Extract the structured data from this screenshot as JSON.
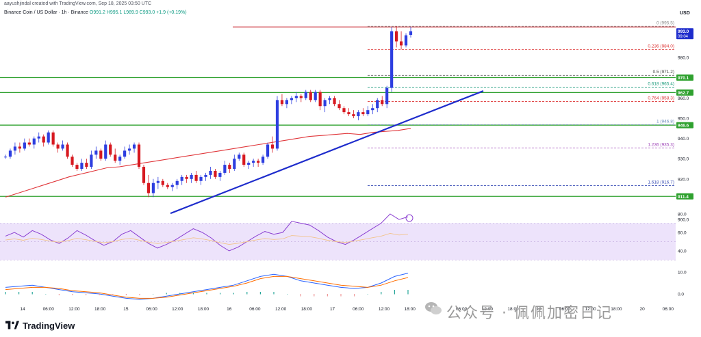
{
  "header": {
    "caption": "aayushjindal created with TradingView.com, Sep 18, 2025 03:50 UTC",
    "symbol": "Binance Coin / US Dollar · 1h · Binance",
    "ohlc": "O991.2 H995.1 L989.9 C993.0 +1.9 (+0.19%)",
    "currency": "USD"
  },
  "brand": {
    "name": "TradingView"
  },
  "watermark": {
    "text": "公众号 · 佩佩加密日记"
  },
  "colors": {
    "up": "#2d3ee0",
    "down": "#d71920",
    "support": "#2fa12f",
    "ema": "#e0363a",
    "trend": "#1e2ccc",
    "rsi": "#8b3fd1",
    "fib": "#d33",
    "accent": "#1e2ccc"
  },
  "chart_data": {
    "type": "candlestick",
    "ylim": [
      900,
      1000
    ],
    "y_ticks": [
      {
        "label": "990.0",
        "value": 990
      },
      {
        "label": "980.0",
        "value": 980
      },
      {
        "label": "960.0",
        "value": 960
      },
      {
        "label": "950.0",
        "value": 950
      },
      {
        "label": "940.0",
        "value": 940
      },
      {
        "label": "930.0",
        "value": 930
      },
      {
        "label": "920.0",
        "value": 920
      },
      {
        "label": "900.0",
        "value": 900
      }
    ],
    "price_badges": [
      {
        "label": "993.0",
        "value": 993.0,
        "sub": "09:04",
        "color": "#1e2ccc"
      },
      {
        "label": "970.1",
        "value": 970.1,
        "color": "#2fa12f"
      },
      {
        "label": "962.7",
        "value": 962.7,
        "color": "#2fa12f"
      },
      {
        "label": "946.6",
        "value": 946.6,
        "color": "#2fa12f"
      },
      {
        "label": "911.4",
        "value": 911.4,
        "color": "#2fa12f"
      }
    ],
    "x_ticks": [
      "14",
      "06:00",
      "12:00",
      "18:00",
      "15",
      "06:00",
      "12:00",
      "18:00",
      "16",
      "06:00",
      "12:00",
      "18:00",
      "17",
      "06:00",
      "12:00",
      "18:00",
      "18",
      "06:00",
      "12:00",
      "18:00",
      "19",
      "06:00",
      "12:00",
      "18:00",
      "20",
      "06:00"
    ],
    "horizontal_levels": [
      {
        "name": "resistance",
        "value": 995.1,
        "color": "#c51e24"
      },
      {
        "name": "support-970",
        "value": 970.1,
        "color": "#2fa12f"
      },
      {
        "name": "support-962",
        "value": 962.7,
        "color": "#2fa12f"
      },
      {
        "name": "support-946",
        "value": 946.6,
        "color": "#2fa12f"
      },
      {
        "name": "support-911",
        "value": 911.4,
        "color": "#2fa12f"
      }
    ],
    "fibonacci": [
      {
        "ratio": "0",
        "value": 995.5,
        "label": "0 (995.5)",
        "color": "#888888"
      },
      {
        "ratio": "0.236",
        "value": 984.0,
        "label": "0.236 (984.0)",
        "color": "#d33"
      },
      {
        "ratio": "0.5",
        "value": 971.2,
        "label": "0.5 (971.2)",
        "color": "#444"
      },
      {
        "ratio": "0.618",
        "value": 965.4,
        "label": "0.618 (965.4)",
        "color": "#189a7a"
      },
      {
        "ratio": "0.764",
        "value": 958.3,
        "label": "0.764 (958.3)",
        "color": "#d33"
      },
      {
        "ratio": "1",
        "value": 946.8,
        "label": "1 (946.8)",
        "color": "#6b8bbb"
      },
      {
        "ratio": "1.236",
        "value": 935.3,
        "label": "1.236 (935.3)",
        "color": "#9b3fb5"
      },
      {
        "ratio": "1.618",
        "value": 916.7,
        "label": "1.618 (916.7)",
        "color": "#3a4fb5"
      }
    ],
    "candles": [
      [
        931,
        932,
        930,
        931
      ],
      [
        931,
        935,
        930,
        934
      ],
      [
        934,
        938,
        932,
        936
      ],
      [
        936,
        938,
        933,
        935
      ],
      [
        935,
        940,
        934,
        938
      ],
      [
        938,
        940,
        936,
        937
      ],
      [
        937,
        941,
        935,
        940
      ],
      [
        940,
        943,
        938,
        941
      ],
      [
        941,
        942,
        936,
        938
      ],
      [
        938,
        944,
        937,
        943
      ],
      [
        943,
        944,
        936,
        937
      ],
      [
        937,
        938,
        933,
        935
      ],
      [
        935,
        939,
        934,
        937
      ],
      [
        937,
        938,
        930,
        931
      ],
      [
        931,
        932,
        926,
        927
      ],
      [
        927,
        928,
        924,
        925
      ],
      [
        925,
        930,
        924,
        928
      ],
      [
        928,
        930,
        925,
        926
      ],
      [
        926,
        934,
        925,
        932
      ],
      [
        932,
        936,
        930,
        934
      ],
      [
        934,
        935,
        929,
        930
      ],
      [
        930,
        939,
        929,
        937
      ],
      [
        937,
        938,
        931,
        932
      ],
      [
        932,
        935,
        928,
        929
      ],
      [
        929,
        932,
        927,
        931
      ],
      [
        931,
        936,
        930,
        934
      ],
      [
        934,
        937,
        932,
        935
      ],
      [
        935,
        938,
        933,
        937
      ],
      [
        937,
        938,
        925,
        926
      ],
      [
        926,
        927,
        917,
        918
      ],
      [
        918,
        922,
        911,
        913
      ],
      [
        913,
        920,
        911,
        918
      ],
      [
        918,
        921,
        915,
        919
      ],
      [
        919,
        920,
        916,
        917
      ],
      [
        917,
        918,
        915,
        916
      ],
      [
        916,
        918,
        914,
        917
      ],
      [
        917,
        920,
        915,
        919
      ],
      [
        919,
        922,
        917,
        921
      ],
      [
        921,
        922,
        918,
        920
      ],
      [
        920,
        923,
        918,
        922
      ],
      [
        922,
        924,
        918,
        919
      ],
      [
        919,
        922,
        917,
        921
      ],
      [
        921,
        923,
        919,
        922
      ],
      [
        922,
        926,
        920,
        924
      ],
      [
        924,
        925,
        920,
        921
      ],
      [
        921,
        924,
        919,
        923
      ],
      [
        923,
        929,
        922,
        927
      ],
      [
        927,
        928,
        923,
        925
      ],
      [
        925,
        932,
        924,
        930
      ],
      [
        930,
        933,
        929,
        932
      ],
      [
        932,
        933,
        926,
        927
      ],
      [
        927,
        929,
        925,
        928
      ],
      [
        928,
        930,
        926,
        929
      ],
      [
        929,
        930,
        926,
        928
      ],
      [
        928,
        932,
        927,
        931
      ],
      [
        931,
        938,
        930,
        937
      ],
      [
        937,
        941,
        933,
        935
      ],
      [
        935,
        961,
        934,
        959
      ],
      [
        959,
        962,
        956,
        957
      ],
      [
        957,
        960,
        955,
        959
      ],
      [
        959,
        961,
        957,
        960
      ],
      [
        960,
        963,
        958,
        961
      ],
      [
        961,
        962,
        958,
        960
      ],
      [
        960,
        964,
        959,
        963
      ],
      [
        963,
        964,
        958,
        959
      ],
      [
        959,
        964,
        958,
        963
      ],
      [
        963,
        964,
        954,
        956
      ],
      [
        956,
        960,
        953,
        959
      ],
      [
        959,
        961,
        957,
        960
      ],
      [
        960,
        961,
        956,
        957
      ],
      [
        957,
        959,
        954,
        955
      ],
      [
        955,
        956,
        952,
        953
      ],
      [
        953,
        955,
        951,
        952
      ],
      [
        952,
        954,
        950,
        951
      ],
      [
        951,
        954,
        949,
        953
      ],
      [
        953,
        955,
        951,
        952
      ],
      [
        952,
        956,
        951,
        954
      ],
      [
        954,
        957,
        952,
        955
      ],
      [
        955,
        960,
        953,
        959
      ],
      [
        959,
        961,
        956,
        957
      ],
      [
        957,
        966,
        955,
        965
      ],
      [
        965,
        995,
        963,
        993
      ],
      [
        993,
        995.5,
        985,
        988
      ],
      [
        988,
        993,
        984,
        986
      ],
      [
        986,
        992,
        985,
        991
      ],
      [
        991.2,
        995.1,
        989.9,
        993.0
      ]
    ],
    "series": [
      {
        "name": "EMA 100",
        "values": [
          911,
          913,
          915,
          917,
          919,
          921,
          922.5,
          924,
          925.5,
          926,
          927,
          928,
          929,
          930,
          931,
          932,
          933,
          934,
          935,
          936,
          937,
          938,
          939,
          940,
          941,
          941.5,
          942,
          942.5,
          942,
          943,
          943.5,
          944,
          945
        ]
      },
      {
        "name": "RSI",
        "values": [
          56,
          60,
          55,
          62,
          58,
          52,
          48,
          54,
          62,
          57,
          51,
          46,
          50,
          58,
          62,
          55,
          48,
          43,
          47,
          52,
          58,
          64,
          60,
          54,
          46,
          40,
          44,
          50,
          56,
          61,
          58,
          60,
          72,
          70,
          68,
          62,
          55,
          50,
          47,
          52,
          58,
          64,
          70,
          80,
          74,
          77
        ]
      }
    ],
    "rsi_levels": [
      {
        "label": "80.0",
        "value": 80
      },
      {
        "label": "60.0",
        "value": 60
      },
      {
        "label": "40.0",
        "value": 40
      }
    ],
    "macd_levels": [
      {
        "label": "10.0",
        "value": 10
      },
      {
        "label": "0.0",
        "value": 0
      }
    ]
  }
}
